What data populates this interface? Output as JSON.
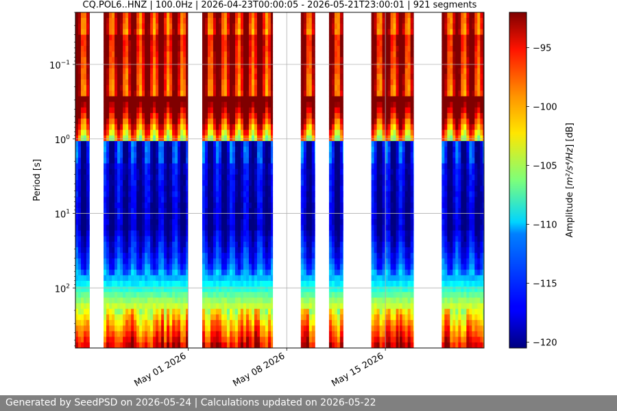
{
  "chart_data": {
    "type": "heatmap",
    "title": "CQ.POL6..HNZ | 100.0Hz | 2026-04-23T00:00:05 - 2026-05-21T23:00:01 | 921 segments",
    "ylabel": "Period [s]",
    "yscale": "log",
    "yaxis_inverted": true,
    "ylim": [
      0.02,
      640
    ],
    "yticks": [
      {
        "value": 0.1,
        "base": "10",
        "exp": "−1"
      },
      {
        "value": 1,
        "base": "10",
        "exp": "0"
      },
      {
        "value": 10,
        "base": "10",
        "exp": "1"
      },
      {
        "value": 100,
        "base": "10",
        "exp": "2"
      }
    ],
    "x_start": "2026-04-23",
    "x_end": "2026-05-22",
    "xticks": [
      {
        "date": "2026-05-01",
        "label": "May 01 2026"
      },
      {
        "date": "2026-05-08",
        "label": "May 08 2026"
      },
      {
        "date": "2026-05-15",
        "label": "May 15 2026"
      }
    ],
    "grid": true,
    "data_periods": [
      {
        "start": "2026-04-23",
        "end": "2026-04-24"
      },
      {
        "start": "2026-04-25",
        "end": "2026-05-01"
      },
      {
        "start": "2026-05-02",
        "end": "2026-05-07"
      },
      {
        "start": "2026-05-09",
        "end": "2026-05-10"
      },
      {
        "start": "2026-05-11",
        "end": "2026-05-12"
      },
      {
        "start": "2026-05-14",
        "end": "2026-05-16"
      },
      {
        "start": "2026-05-16",
        "end": "2026-05-17"
      },
      {
        "start": "2026-05-19",
        "end": "2026-05-22"
      }
    ],
    "colorbar": {
      "label_prefix": "Amplitude [",
      "label_math": "m²/s⁴/Hz",
      "label_suffix": "] [dB]",
      "range": [
        -120.5,
        -92
      ],
      "colormap": "jet",
      "ticks": [
        {
          "value": -95,
          "label": "−95"
        },
        {
          "value": -100,
          "label": "−100"
        },
        {
          "value": -105,
          "label": "−105"
        },
        {
          "value": -110,
          "label": "−110"
        },
        {
          "value": -115,
          "label": "−115"
        },
        {
          "value": -120,
          "label": "−120"
        }
      ]
    }
  },
  "footer": {
    "text": "Generated by SeedPSD on 2026-05-24 | Calculations updated on 2026-05-22"
  }
}
